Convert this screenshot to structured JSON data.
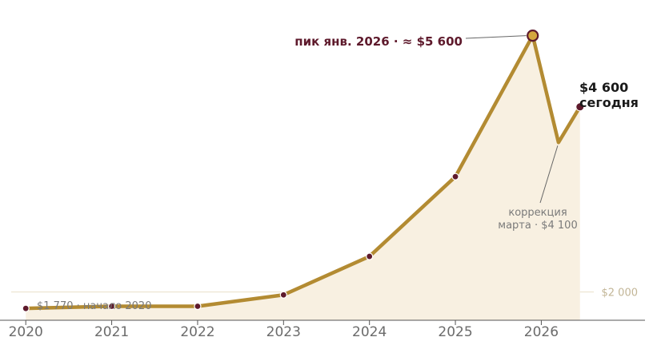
{
  "colors": {
    "line": "#b38b32",
    "area": "#f8f0e1",
    "marker": "#5e1a2c",
    "peak_fill": "#d4a73e",
    "grid": "#eadfc9",
    "axis": "#555555"
  },
  "chart_data": {
    "type": "area",
    "title": "",
    "xlabel": "",
    "ylabel": "",
    "x_ticks": [
      "2020",
      "2021",
      "2022",
      "2023",
      "2024",
      "2025",
      "2026"
    ],
    "xlim": [
      2019.7,
      2027.3
    ],
    "ylim": [
      1200,
      6100
    ],
    "gridlines": [
      {
        "value": 2000,
        "label": "$2 000"
      }
    ],
    "series": [
      {
        "points": [
          {
            "x": 2020.0,
            "y": 1770
          },
          {
            "x": 2021.0,
            "y": 1800
          },
          {
            "x": 2022.0,
            "y": 1800
          },
          {
            "x": 2023.0,
            "y": 1960
          },
          {
            "x": 2024.0,
            "y": 2500
          },
          {
            "x": 2025.0,
            "y": 3620
          },
          {
            "x": 2025.9,
            "y": 5600
          },
          {
            "x": 2026.2,
            "y": 4100
          },
          {
            "x": 2026.45,
            "y": 4600
          }
        ],
        "markers": [
          0,
          1,
          2,
          3,
          4,
          5,
          6,
          8
        ],
        "peak_index": 6
      }
    ],
    "annotations": {
      "start": "$1 770 · начало 2020",
      "peak": "пик янв. 2026 · ≈ $5 600",
      "correction_line1": "коррекция",
      "correction_line2": "марта · $4 100",
      "today_value": "$4 600",
      "today_label": "сегодня"
    }
  }
}
